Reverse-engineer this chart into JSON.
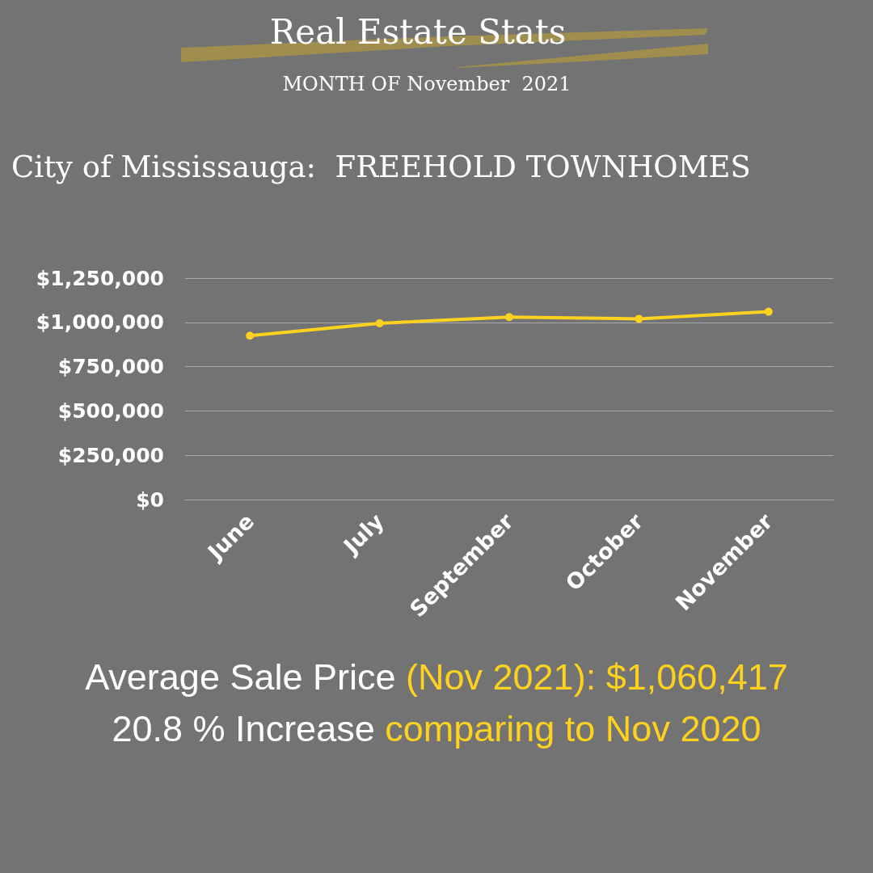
{
  "chart_data": {
    "type": "line",
    "title": "Real Estate Stats",
    "subtitle": "MONTH OF November  2021",
    "annotations": [
      "City of Mississauga:  FREEHOLD TOWNHOMES",
      "Average Sale Price",
      "(Nov 2021): $1,060,417",
      "20.8 % Increase",
      "comparing to Nov 2020"
    ],
    "categories": [
      "June",
      "July",
      "September",
      "October",
      "November"
    ],
    "series": [
      {
        "color": "#fdd21f",
        "values": [
          925000,
          995000,
          1030000,
          1020000,
          1060417
        ]
      }
    ],
    "ylim": [
      0,
      1250000
    ],
    "yticks": [
      {
        "value": 0,
        "label": "$0"
      },
      {
        "value": 250000,
        "label": "$250,000"
      },
      {
        "value": 500000,
        "label": "$500,000"
      },
      {
        "value": 750000,
        "label": "$750,000"
      },
      {
        "value": 1000000,
        "label": "$1,000,000"
      },
      {
        "value": 1250000,
        "label": "$1,250,000"
      }
    ],
    "grid": "y",
    "marker": "circle",
    "line_style": "solid"
  }
}
